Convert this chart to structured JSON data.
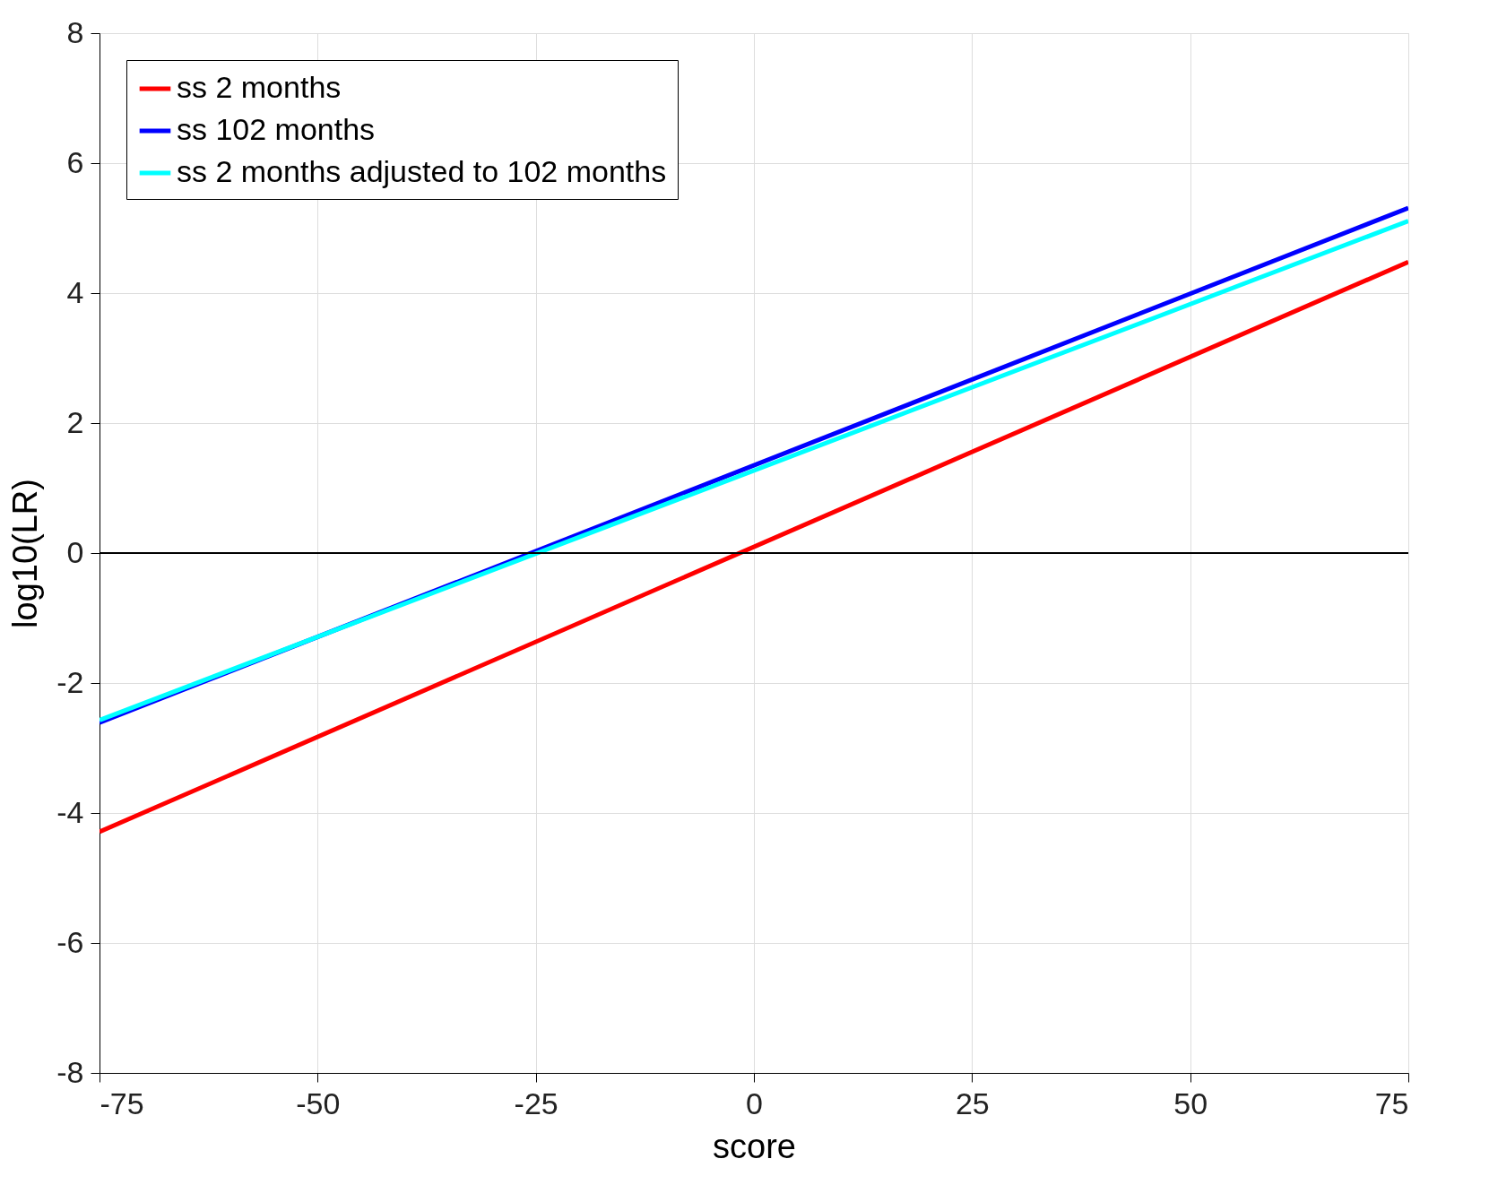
{
  "chart_data": {
    "type": "line",
    "xlabel": "score",
    "ylabel": "log10(LR)",
    "x": [
      -75,
      75
    ],
    "series": [
      {
        "name": "ss 2 months",
        "color": "#ff0000",
        "values": [
          -4.29,
          4.48
        ]
      },
      {
        "name": "ss 102 months",
        "color": "#0000ff",
        "values": [
          -2.61,
          5.31
        ]
      },
      {
        "name": "ss 2 months adjusted to 102 months",
        "color": "#00ffff",
        "values": [
          -2.57,
          5.11
        ]
      }
    ],
    "xlim": [
      -75,
      75
    ],
    "xticks": [
      -75,
      -50,
      -25,
      0,
      25,
      50,
      75
    ],
    "ylim": [
      -8,
      8
    ],
    "yticks": [
      -8,
      -6,
      -4,
      -2,
      0,
      2,
      4,
      6,
      8
    ],
    "ref_lines": [
      {
        "axis": "y",
        "value": 0,
        "color": "#000000"
      }
    ],
    "grid": true,
    "legend": "top left",
    "marker": "none",
    "line_style": "solid"
  }
}
